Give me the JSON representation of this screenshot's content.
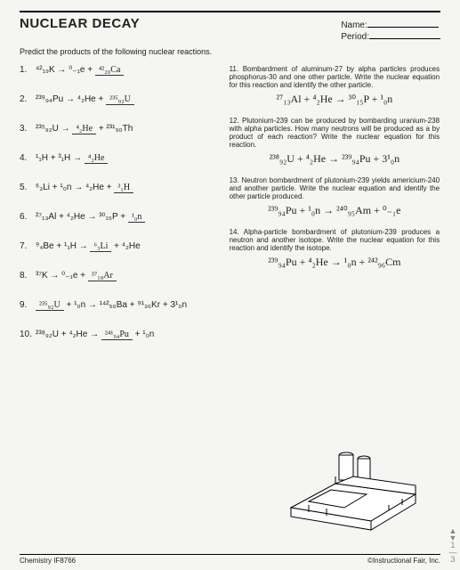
{
  "page": {
    "title": "NUCLEAR DECAY",
    "name_label": "Name:",
    "period_label": "Period:",
    "instruction": "Predict the products of the following nuclear reactions.",
    "footer_left": "Chemistry IF8766",
    "footer_right": "©Instructional Fair, Inc."
  },
  "left_questions": [
    {
      "n": "1.",
      "eq_parts": [
        "⁴²₁₉K → ",
        "⁰₋₁e + ",
        ""
      ],
      "ans": "⁴²₂₀Ca"
    },
    {
      "n": "2.",
      "eq_parts": [
        "²³⁹₉₄Pu → ",
        "⁴₂He + ",
        ""
      ],
      "ans": "²³⁵₉₂U"
    },
    {
      "n": "3.",
      "eq_parts": [
        "²³⁵₉₂U → ",
        "",
        " + ",
        "²³¹₉₀Th"
      ],
      "ans": "⁴₂He"
    },
    {
      "n": "4.",
      "eq_parts": [
        "¹₁H + ³₁H → ",
        ""
      ],
      "ans": "⁴₂He"
    },
    {
      "n": "5.",
      "eq_parts": [
        "⁶₃Li + ¹₀n → ⁴₂He + ",
        ""
      ],
      "ans": "³₁H"
    },
    {
      "n": "6.",
      "eq_parts": [
        "²⁷₁₃Al + ⁴₂He → ³⁰₁₅P + ",
        ""
      ],
      "ans": "¹₀n"
    },
    {
      "n": "7.",
      "eq_parts": [
        "⁹₄Be + ¹₁H → ",
        "",
        " + ⁴₂He"
      ],
      "ans": "⁶₃Li"
    },
    {
      "n": "8.",
      "eq_parts": [
        "³⁷K → ",
        "⁰₋₁e + ",
        ""
      ],
      "ans": "³⁷₁₈Ar"
    },
    {
      "n": "9.",
      "eq_parts": [
        "",
        " + ¹₀n → ¹⁴²₅₆Ba + ⁹¹₃₆Kr + 3¹₀n"
      ],
      "ans": "²³⁵₉₂U",
      "ans_first": true
    },
    {
      "n": "10.",
      "eq_parts": [
        "²³⁸₉₂U + ⁴₂He → ",
        "",
        " + ¹₀n"
      ],
      "ans": "²⁴¹₉₄Pu"
    }
  ],
  "right_questions": [
    {
      "n": "11.",
      "text": "Bombardment of aluminum-27 by alpha particles produces phosphorus-30 and one other particle. Write the nuclear equation for this reaction and identify the other particle.",
      "hand": "²⁷₁₃Al + ⁴₂He → ³⁰₁₅P + ¹₀n"
    },
    {
      "n": "12.",
      "text": "Plutonium-239 can be produced by bombarding uranium-238 with alpha particles. How many neutrons will be produced as a by product of each reaction? Write the nuclear equation for this reaction.",
      "hand": "²³⁸₉₂U + ⁴₂He → ²³⁹₉₄Pu + 3¹₀n"
    },
    {
      "n": "13.",
      "text": "Neutron bombardment of plutonium-239 yields americium-240 and another particle. Write the nuclear equation and identify the other particle produced.",
      "hand": "²³⁹₉₄Pu + ¹₀n → ²⁴⁰₉₅Am + ⁰₋₁e"
    },
    {
      "n": "14.",
      "text": "Alpha-particle bombardment of plutonium-239 produces a neutron and another isotope. Write the nuclear equation for this reaction and identify the isotope.",
      "hand": "²³⁹₉₄Pu + ⁴₂He → ¹₀n + ²⁴²₉₆Cm"
    }
  ],
  "scroll": {
    "up": "▲",
    "down": "▼",
    "page": "1",
    "sep": "—",
    "total": "3"
  }
}
